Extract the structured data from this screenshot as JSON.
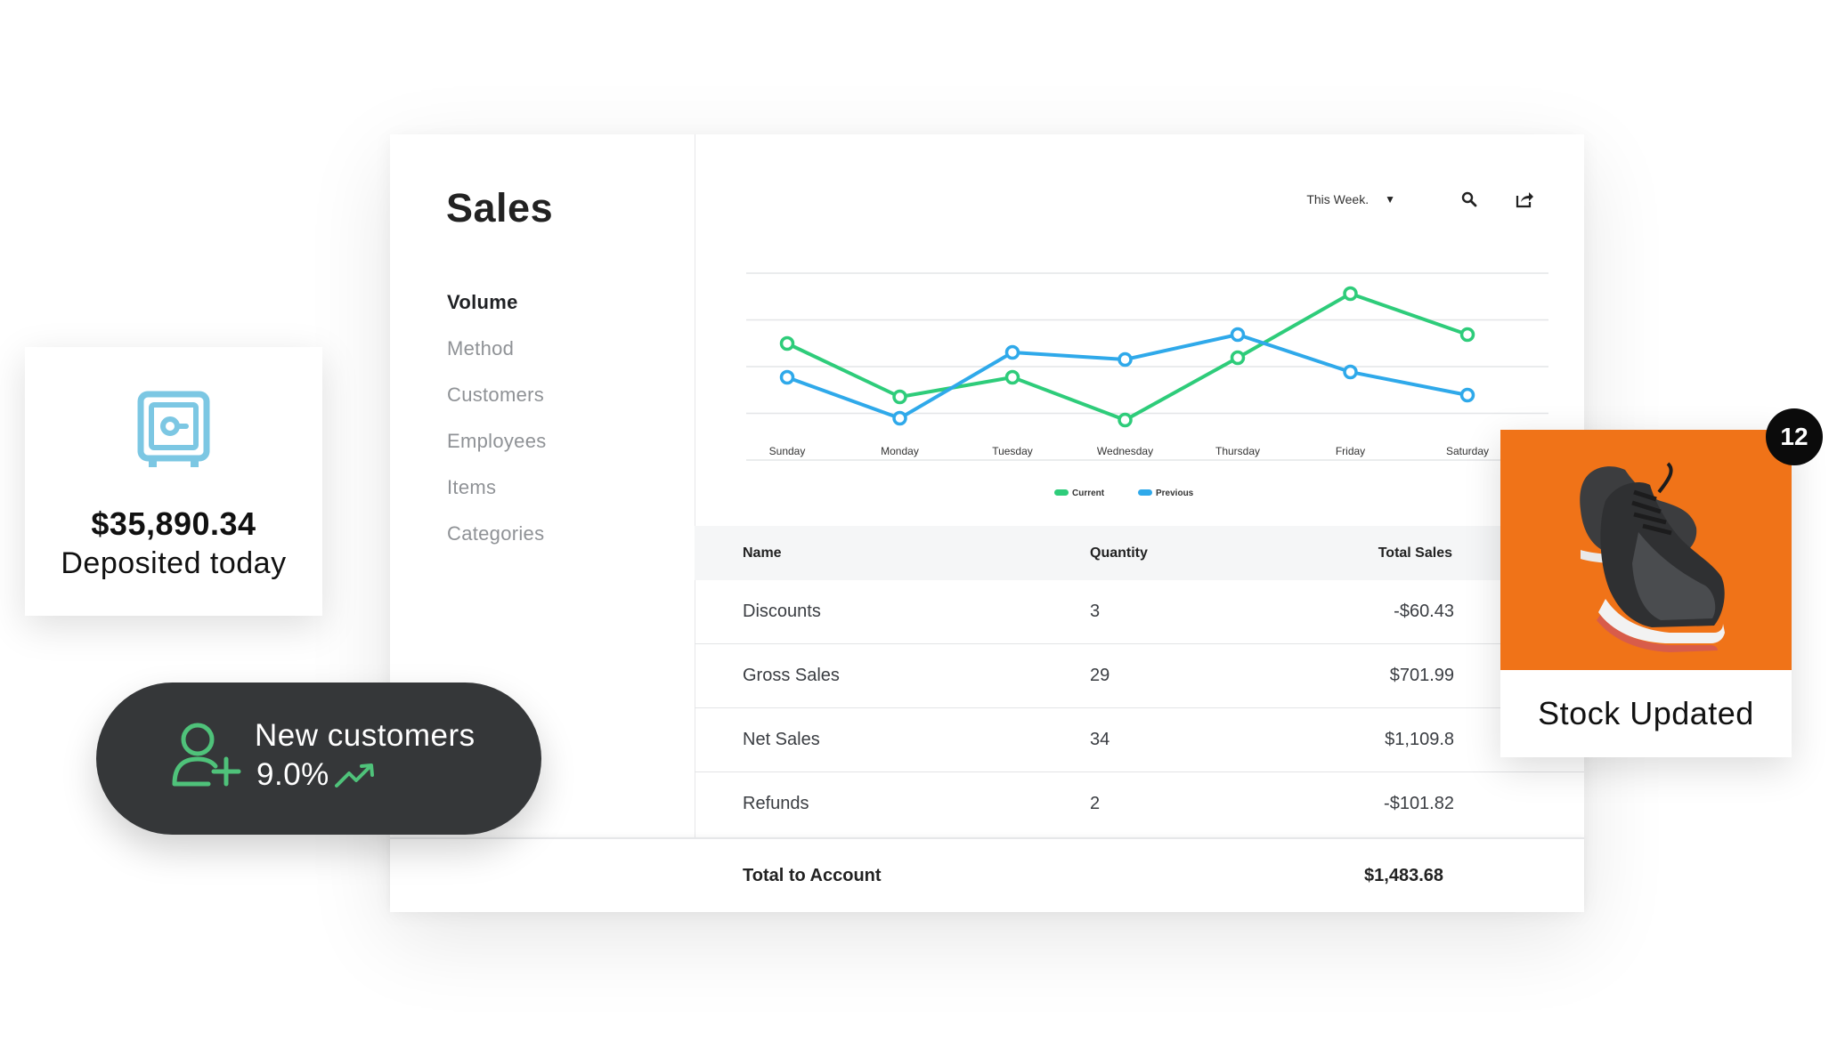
{
  "sidebar": {
    "title": "Sales",
    "items": [
      {
        "label": "Volume",
        "active": true
      },
      {
        "label": "Method",
        "active": false
      },
      {
        "label": "Customers",
        "active": false
      },
      {
        "label": "Employees",
        "active": false
      },
      {
        "label": "Items",
        "active": false
      },
      {
        "label": "Categories",
        "active": false
      }
    ]
  },
  "toolbar": {
    "range_label": "This Week.",
    "icons": [
      "caret-down-icon",
      "search-icon",
      "export-icon"
    ]
  },
  "chart_data": {
    "type": "line",
    "categories": [
      "Sunday",
      "Monday",
      "Tuesday",
      "Wednesday",
      "Thursday",
      "Friday",
      "Saturday"
    ],
    "series": [
      {
        "name": "Current",
        "color": "#2ecc7a",
        "values": [
          2.65,
          1.15,
          1.7,
          0.5,
          2.25,
          4.05,
          2.9
        ]
      },
      {
        "name": "Previous",
        "color": "#2fa9ea",
        "values": [
          1.7,
          0.55,
          2.4,
          2.2,
          2.9,
          1.85,
          1.2
        ]
      }
    ],
    "ylim": [
      0,
      4.5
    ],
    "grid": true,
    "legend": "bottom-center"
  },
  "table": {
    "headers": {
      "name": "Name",
      "quantity": "Quantity",
      "total": "Total Sales"
    },
    "rows": [
      {
        "name": "Discounts",
        "quantity": "3",
        "total": "-$60.43"
      },
      {
        "name": "Gross Sales",
        "quantity": "29",
        "total": "$701.99"
      },
      {
        "name": "Net Sales",
        "quantity": "34",
        "total": "$1,109.8"
      },
      {
        "name": "Refunds",
        "quantity": "2",
        "total": "-$101.82"
      }
    ],
    "footer": {
      "label": "Total to Account",
      "value": "$1,483.68"
    }
  },
  "deposit": {
    "amount": "$35,890.34",
    "label": "Deposited today",
    "icon": "safe-icon",
    "icon_color": "#7cc7e3"
  },
  "customers": {
    "title": "New customers",
    "percent": "9.0%",
    "icon": "add-user-icon",
    "trend_icon": "trend-up-icon",
    "accent": "#4fc27a"
  },
  "stock": {
    "label": "Stock Updated",
    "badge": "12",
    "image": "sneaker-image",
    "bg_color": "#f07318"
  }
}
